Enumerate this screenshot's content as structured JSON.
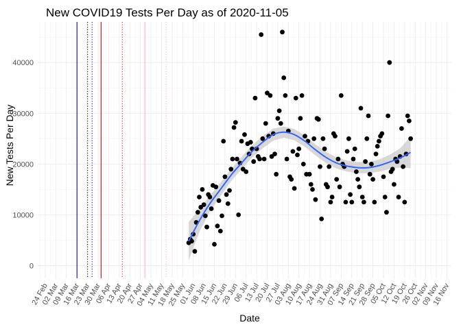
{
  "chart_data": {
    "type": "scatter",
    "title": "New COVID19 Tests Per Day as of 2020-11-05",
    "xlabel": "Date",
    "ylabel": "New Tests Per Day",
    "xlim": [
      "2020-02-19",
      "2020-11-19"
    ],
    "ylim": [
      -2500,
      48000
    ],
    "x_tick_labels": [
      "24 Feb",
      "02 Mar",
      "09 Mar",
      "16 Mar",
      "23 Mar",
      "30 Mar",
      "06 Apr",
      "13 Apr",
      "20 Apr",
      "27 Apr",
      "04 May",
      "11 May",
      "18 May",
      "25 May",
      "01 Jun",
      "08 Jun",
      "15 Jun",
      "22 Jun",
      "29 Jun",
      "06 Jul",
      "13 Jul",
      "20 Jul",
      "27 Jul",
      "03 Aug",
      "10 Aug",
      "17 Aug",
      "24 Aug",
      "31 Aug",
      "07 Sep",
      "14 Sep",
      "21 Sep",
      "28 Sep",
      "05 Oct",
      "12 Oct",
      "19 Oct",
      "26 Oct",
      "02 Nov",
      "09 Nov",
      "16 Nov"
    ],
    "x_tick_dates": [
      "2020-02-24",
      "2020-03-02",
      "2020-03-09",
      "2020-03-16",
      "2020-03-23",
      "2020-03-30",
      "2020-04-06",
      "2020-04-13",
      "2020-04-20",
      "2020-04-27",
      "2020-05-04",
      "2020-05-11",
      "2020-05-18",
      "2020-05-25",
      "2020-06-01",
      "2020-06-08",
      "2020-06-15",
      "2020-06-22",
      "2020-06-29",
      "2020-07-06",
      "2020-07-13",
      "2020-07-20",
      "2020-07-27",
      "2020-08-03",
      "2020-08-10",
      "2020-08-17",
      "2020-08-24",
      "2020-08-31",
      "2020-09-07",
      "2020-09-14",
      "2020-09-21",
      "2020-09-28",
      "2020-10-05",
      "2020-10-12",
      "2020-10-19",
      "2020-10-26",
      "2020-11-02",
      "2020-11-09",
      "2020-11-16"
    ],
    "y_ticks": [
      0,
      10000,
      20000,
      30000,
      40000
    ],
    "grid": true,
    "legend": "none",
    "vertical_lines": [
      {
        "date": "2020-03-16",
        "color": "#0000ff",
        "style": "solid"
      },
      {
        "date": "2020-03-23",
        "color": "#000000",
        "style": "dotted"
      },
      {
        "date": "2020-03-26",
        "color": "#0000ff",
        "style": "dotted"
      },
      {
        "date": "2020-04-01",
        "color": "#ff0000",
        "style": "solid"
      },
      {
        "date": "2020-04-15",
        "color": "#ff0000",
        "style": "dotted"
      },
      {
        "date": "2020-04-30",
        "color": "#ffb6c1",
        "style": "solid"
      },
      {
        "date": "2020-05-14",
        "color": "#ffb6c1",
        "style": "dotted"
      }
    ],
    "point_color": "#000000",
    "smooth_color": "#3366ff",
    "ribbon_color": "#bebebe",
    "points": [
      [
        "2020-05-29",
        4500
      ],
      [
        "2020-05-30",
        5200
      ],
      [
        "2020-05-31",
        4800
      ],
      [
        "2020-06-01",
        6200
      ],
      [
        "2020-06-02",
        2800
      ],
      [
        "2020-06-03",
        8500
      ],
      [
        "2020-06-04",
        10500
      ],
      [
        "2020-06-05",
        13500
      ],
      [
        "2020-06-06",
        11500
      ],
      [
        "2020-06-07",
        15000
      ],
      [
        "2020-06-08",
        12000
      ],
      [
        "2020-06-09",
        9800
      ],
      [
        "2020-06-10",
        7600
      ],
      [
        "2020-06-11",
        14000
      ],
      [
        "2020-06-12",
        13500
      ],
      [
        "2020-06-13",
        11200
      ],
      [
        "2020-06-14",
        15800
      ],
      [
        "2020-06-15",
        4200
      ],
      [
        "2020-06-16",
        15500
      ],
      [
        "2020-06-17",
        7800
      ],
      [
        "2020-06-18",
        12800
      ],
      [
        "2020-06-19",
        6800
      ],
      [
        "2020-06-20",
        9800
      ],
      [
        "2020-06-21",
        24500
      ],
      [
        "2020-06-22",
        17500
      ],
      [
        "2020-06-23",
        14000
      ],
      [
        "2020-06-24",
        12200
      ],
      [
        "2020-06-25",
        14800
      ],
      [
        "2020-06-26",
        19000
      ],
      [
        "2020-06-27",
        21000
      ],
      [
        "2020-06-28",
        27200
      ],
      [
        "2020-06-29",
        28200
      ],
      [
        "2020-06-30",
        21000
      ],
      [
        "2020-07-01",
        10000
      ],
      [
        "2020-07-02",
        20200
      ],
      [
        "2020-07-03",
        24500
      ],
      [
        "2020-07-04",
        19000
      ],
      [
        "2020-07-05",
        25800
      ],
      [
        "2020-07-06",
        18500
      ],
      [
        "2020-07-07",
        24000
      ],
      [
        "2020-07-08",
        22000
      ],
      [
        "2020-07-09",
        24300
      ],
      [
        "2020-07-10",
        23000
      ],
      [
        "2020-07-11",
        20500
      ],
      [
        "2020-07-12",
        33000
      ],
      [
        "2020-07-13",
        23000
      ],
      [
        "2020-07-14",
        21500
      ],
      [
        "2020-07-15",
        21000
      ],
      [
        "2020-07-16",
        45500
      ],
      [
        "2020-07-17",
        25000
      ],
      [
        "2020-07-18",
        21000
      ],
      [
        "2020-07-19",
        28000
      ],
      [
        "2020-07-20",
        34000
      ],
      [
        "2020-07-21",
        25500
      ],
      [
        "2020-07-22",
        33500
      ],
      [
        "2020-07-23",
        21500
      ],
      [
        "2020-07-24",
        26000
      ],
      [
        "2020-07-25",
        22000
      ],
      [
        "2020-07-26",
        18000
      ],
      [
        "2020-07-27",
        29000
      ],
      [
        "2020-07-28",
        30500
      ],
      [
        "2020-07-29",
        28000
      ],
      [
        "2020-07-30",
        46000
      ],
      [
        "2020-07-31",
        37000
      ],
      [
        "2020-08-01",
        33500
      ],
      [
        "2020-08-02",
        21000
      ],
      [
        "2020-08-03",
        26500
      ],
      [
        "2020-08-04",
        17500
      ],
      [
        "2020-08-05",
        17000
      ],
      [
        "2020-08-06",
        22500
      ],
      [
        "2020-08-07",
        15200
      ],
      [
        "2020-08-08",
        33000
      ],
      [
        "2020-08-09",
        21800
      ],
      [
        "2020-08-10",
        23000
      ],
      [
        "2020-08-11",
        29000
      ],
      [
        "2020-08-12",
        33500
      ],
      [
        "2020-08-13",
        20000
      ],
      [
        "2020-08-14",
        25500
      ],
      [
        "2020-08-15",
        18000
      ],
      [
        "2020-08-16",
        24500
      ],
      [
        "2020-08-17",
        18000
      ],
      [
        "2020-08-18",
        16000
      ],
      [
        "2020-08-19",
        15000
      ],
      [
        "2020-08-20",
        25000
      ],
      [
        "2020-08-21",
        13000
      ],
      [
        "2020-08-22",
        29000
      ],
      [
        "2020-08-23",
        28800
      ],
      [
        "2020-08-24",
        19500
      ],
      [
        "2020-08-25",
        9200
      ],
      [
        "2020-08-26",
        25000
      ],
      [
        "2020-08-27",
        23000
      ],
      [
        "2020-08-28",
        16000
      ],
      [
        "2020-08-29",
        15500
      ],
      [
        "2020-08-30",
        19500
      ],
      [
        "2020-08-31",
        12500
      ],
      [
        "2020-09-01",
        13500
      ],
      [
        "2020-09-02",
        26000
      ],
      [
        "2020-09-03",
        25500
      ],
      [
        "2020-09-04",
        17000
      ],
      [
        "2020-09-05",
        21000
      ],
      [
        "2020-09-06",
        15500
      ],
      [
        "2020-09-07",
        33500
      ],
      [
        "2020-09-08",
        20000
      ],
      [
        "2020-09-09",
        19500
      ],
      [
        "2020-09-10",
        12500
      ],
      [
        "2020-09-11",
        22500
      ],
      [
        "2020-09-12",
        25000
      ],
      [
        "2020-09-13",
        14000
      ],
      [
        "2020-09-14",
        12500
      ],
      [
        "2020-09-15",
        21000
      ],
      [
        "2020-09-16",
        23000
      ],
      [
        "2020-09-17",
        18500
      ],
      [
        "2020-09-18",
        17000
      ],
      [
        "2020-09-19",
        15500
      ],
      [
        "2020-09-20",
        31000
      ],
      [
        "2020-09-21",
        13500
      ],
      [
        "2020-09-22",
        12500
      ],
      [
        "2020-09-23",
        20500
      ],
      [
        "2020-09-24",
        25000
      ],
      [
        "2020-09-25",
        29500
      ],
      [
        "2020-09-26",
        18000
      ],
      [
        "2020-09-27",
        20000
      ],
      [
        "2020-09-28",
        17000
      ],
      [
        "2020-09-29",
        12500
      ],
      [
        "2020-09-30",
        22000
      ],
      [
        "2020-10-01",
        23500
      ],
      [
        "2020-10-02",
        24500
      ],
      [
        "2020-10-03",
        25500
      ],
      [
        "2020-10-04",
        26000
      ],
      [
        "2020-10-05",
        17500
      ],
      [
        "2020-10-06",
        13500
      ],
      [
        "2020-10-07",
        10500
      ],
      [
        "2020-10-08",
        29500
      ],
      [
        "2020-10-09",
        40000
      ],
      [
        "2020-10-10",
        18500
      ],
      [
        "2020-10-11",
        19000
      ],
      [
        "2020-10-12",
        16000
      ],
      [
        "2020-10-13",
        21000
      ],
      [
        "2020-10-14",
        20500
      ],
      [
        "2020-10-15",
        13500
      ],
      [
        "2020-10-16",
        21500
      ],
      [
        "2020-10-17",
        27000
      ],
      [
        "2020-10-18",
        19500
      ],
      [
        "2020-10-19",
        12500
      ],
      [
        "2020-10-20",
        22000
      ],
      [
        "2020-10-21",
        29500
      ],
      [
        "2020-10-22",
        28500
      ],
      [
        "2020-10-23",
        25000
      ]
    ],
    "smooth_fit": [
      [
        "2020-05-29",
        4800
      ],
      [
        "2020-06-05",
        8800
      ],
      [
        "2020-06-12",
        12200
      ],
      [
        "2020-06-19",
        15000
      ],
      [
        "2020-06-26",
        17800
      ],
      [
        "2020-07-03",
        20200
      ],
      [
        "2020-07-10",
        22500
      ],
      [
        "2020-07-17",
        24300
      ],
      [
        "2020-07-24",
        25800
      ],
      [
        "2020-07-31",
        26300
      ],
      [
        "2020-08-07",
        25800
      ],
      [
        "2020-08-14",
        24500
      ],
      [
        "2020-08-21",
        22800
      ],
      [
        "2020-08-28",
        21300
      ],
      [
        "2020-09-04",
        20200
      ],
      [
        "2020-09-11",
        19600
      ],
      [
        "2020-09-18",
        19300
      ],
      [
        "2020-09-25",
        19300
      ],
      [
        "2020-10-02",
        19700
      ],
      [
        "2020-10-09",
        20400
      ],
      [
        "2020-10-16",
        21200
      ],
      [
        "2020-10-23",
        22300
      ]
    ],
    "smooth_ci": [
      [
        "2020-05-29",
        1000,
        8600
      ],
      [
        "2020-06-05",
        6600,
        11000
      ],
      [
        "2020-06-12",
        10600,
        13800
      ],
      [
        "2020-06-19",
        13700,
        16300
      ],
      [
        "2020-06-26",
        16600,
        19000
      ],
      [
        "2020-07-03",
        19000,
        21400
      ],
      [
        "2020-07-10",
        21300,
        23700
      ],
      [
        "2020-07-17",
        23100,
        25500
      ],
      [
        "2020-07-24",
        24600,
        27000
      ],
      [
        "2020-07-31",
        25200,
        27400
      ],
      [
        "2020-08-07",
        24700,
        26900
      ],
      [
        "2020-08-14",
        23400,
        25600
      ],
      [
        "2020-08-21",
        21700,
        23900
      ],
      [
        "2020-08-28",
        20200,
        22400
      ],
      [
        "2020-09-04",
        19100,
        21300
      ],
      [
        "2020-09-11",
        18500,
        20700
      ],
      [
        "2020-09-18",
        18200,
        20400
      ],
      [
        "2020-09-25",
        18200,
        20400
      ],
      [
        "2020-10-02",
        18500,
        20900
      ],
      [
        "2020-10-09",
        19000,
        21800
      ],
      [
        "2020-10-16",
        19300,
        23100
      ],
      [
        "2020-10-23",
        19200,
        25400
      ]
    ]
  }
}
